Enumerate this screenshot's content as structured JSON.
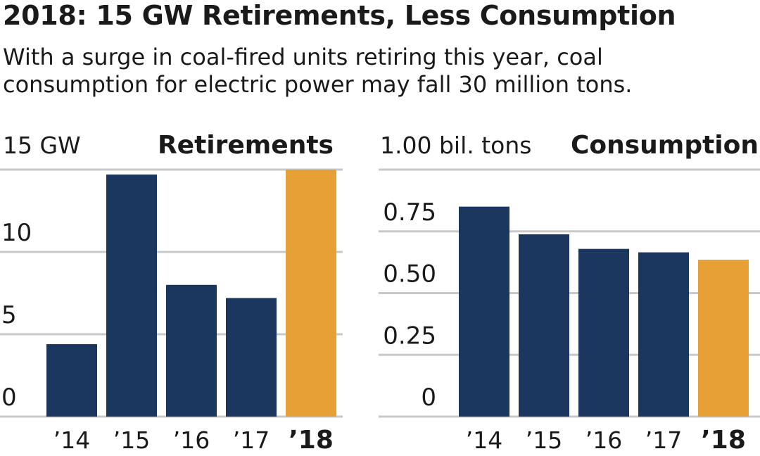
{
  "headline": "2018: 15 GW Retirements, Less Consumption",
  "subtitle": "With a surge in coal-fired units retiring this year, coal consumption for electric power may fall 30 million tons.",
  "colors": {
    "bar": "#1c375f",
    "highlight": "#e6a035",
    "grid": "#c8c8c8"
  },
  "chart_data": [
    {
      "type": "bar",
      "title": "Retirements",
      "ylabel": "15 GW",
      "categories": [
        "’14",
        "’15",
        "’16",
        "’17",
        "’18"
      ],
      "values": [
        4.4,
        14.7,
        8.0,
        7.2,
        15.0
      ],
      "highlight_index": 4,
      "ylim": [
        0,
        15
      ],
      "yticks": [
        {
          "value": 0,
          "label": "0"
        },
        {
          "value": 5,
          "label": "5"
        },
        {
          "value": 10,
          "label": "10"
        }
      ],
      "grid": true
    },
    {
      "type": "bar",
      "title": "Consumption",
      "ylabel": "1.00 bil. tons",
      "categories": [
        "’14",
        "’15",
        "’16",
        "’17",
        "’18"
      ],
      "values": [
        0.85,
        0.738,
        0.679,
        0.665,
        0.635
      ],
      "highlight_index": 4,
      "ylim": [
        0,
        1.0
      ],
      "yticks": [
        {
          "value": 0,
          "label": "0"
        },
        {
          "value": 0.25,
          "label": "0.25"
        },
        {
          "value": 0.5,
          "label": "0.50"
        },
        {
          "value": 0.75,
          "label": "0.75"
        }
      ],
      "grid": true
    }
  ]
}
